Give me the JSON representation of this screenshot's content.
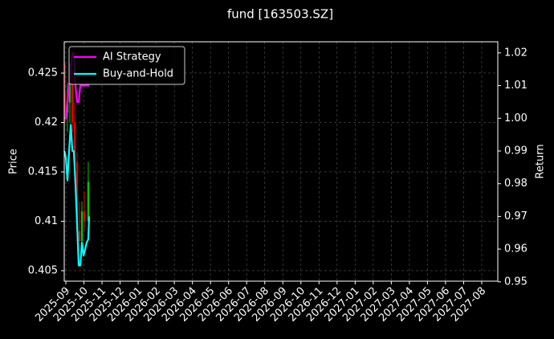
{
  "chart_data": {
    "type": "candlestick",
    "title": "fund [163503.SZ]",
    "ylabel": "Price",
    "y2label": "Return",
    "xlim": [
      -0.09,
      23.89
    ],
    "xticks": [
      {
        "value": 0,
        "label": "2025-09"
      },
      {
        "value": 1,
        "label": "2025-10"
      },
      {
        "value": 2,
        "label": "2025-11"
      },
      {
        "value": 3,
        "label": "2025-12"
      },
      {
        "value": 4,
        "label": "2026-01"
      },
      {
        "value": 5,
        "label": "2026-02"
      },
      {
        "value": 6,
        "label": "2026-03"
      },
      {
        "value": 7,
        "label": "2026-04"
      },
      {
        "value": 8,
        "label": "2026-05"
      },
      {
        "value": 9,
        "label": "2026-06"
      },
      {
        "value": 10,
        "label": "2026-07"
      },
      {
        "value": 11,
        "label": "2026-08"
      },
      {
        "value": 12,
        "label": "2026-09"
      },
      {
        "value": 13,
        "label": "2026-10"
      },
      {
        "value": 14,
        "label": "2026-11"
      },
      {
        "value": 15,
        "label": "2026-12"
      },
      {
        "value": 16,
        "label": "2027-01"
      },
      {
        "value": 17,
        "label": "2027-02"
      },
      {
        "value": 18,
        "label": "2027-03"
      },
      {
        "value": 19,
        "label": "2027-04"
      },
      {
        "value": 20,
        "label": "2027-05"
      },
      {
        "value": 21,
        "label": "2027-06"
      },
      {
        "value": 22,
        "label": "2027-07"
      },
      {
        "value": 23,
        "label": "2027-08"
      }
    ],
    "ylim": [
      0.40394,
      0.42817
    ],
    "yticks": [
      0.405,
      0.41,
      0.415,
      0.42,
      0.425
    ],
    "y2lim": [
      0.9502,
      1.0234
    ],
    "y2ticks": [
      0.95,
      0.96,
      0.97,
      0.98,
      0.99,
      {
        "value": 1.0,
        "label": "1.00"
      },
      1.01,
      1.02
    ],
    "grid": true,
    "legend": "upper left",
    "up_color": "#00c800",
    "down_color": "#e00000",
    "candles": {
      "x": [
        -0.04,
        0.09,
        0.22,
        0.36,
        0.49,
        0.62,
        0.75,
        0.89,
        1.02,
        1.24
      ],
      "open": [
        0.423,
        0.421,
        0.422,
        0.424,
        0.42,
        0.416,
        0.409,
        0.408,
        0.411,
        0.41
      ],
      "high": [
        0.426,
        0.424,
        0.426,
        0.425,
        0.422,
        0.417,
        0.412,
        0.412,
        0.413,
        0.416
      ],
      "low": [
        0.42,
        0.419,
        0.42,
        0.419,
        0.414,
        0.408,
        0.407,
        0.407,
        0.409,
        0.41
      ],
      "close": [
        0.421,
        0.422,
        0.424,
        0.42,
        0.416,
        0.409,
        0.408,
        0.411,
        0.41,
        0.414
      ]
    },
    "x": [
      -0.08,
      0,
      0.09,
      0.18,
      0.27,
      0.36,
      0.44,
      0.53,
      0.62,
      0.71,
      0.8,
      0.89,
      0.98,
      1.07,
      1.15,
      1.24,
      1.29
    ],
    "series": [
      {
        "name": "AI Strategy",
        "color": "#ff00ff",
        "axis": "y2",
        "values": [
          1.0,
          1.0,
          1.005,
          1.01,
          1.015,
          1.02,
          1.02,
          1.01,
          1.005,
          1.005,
          1.01,
          1.01,
          1.01,
          1.01,
          1.01,
          1.01,
          1.01
        ]
      },
      {
        "name": "Buy-and-Hold",
        "color": "#00ffff",
        "axis": "y2",
        "values": [
          0.99,
          0.988,
          0.981,
          0.99,
          0.998,
          0.99,
          0.99,
          0.98,
          0.968,
          0.955,
          0.955,
          0.962,
          0.958,
          0.96,
          0.962,
          0.963,
          0.97
        ]
      }
    ]
  }
}
